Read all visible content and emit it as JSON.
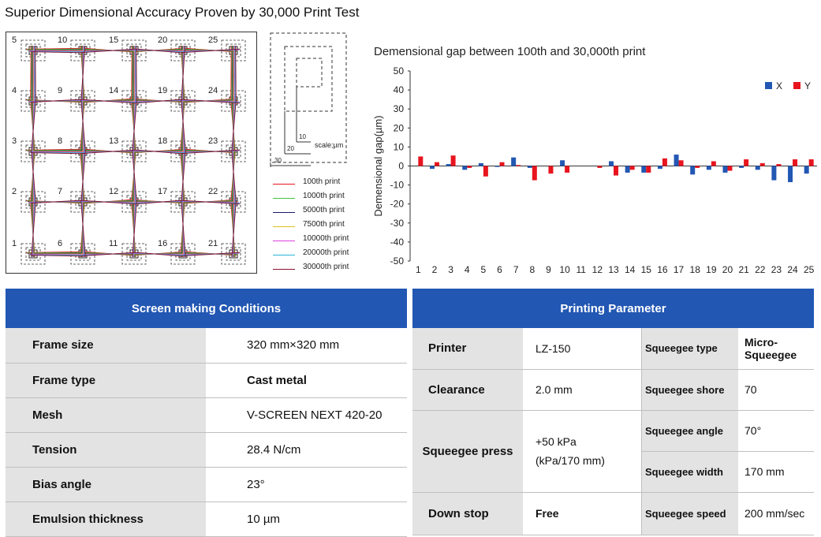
{
  "page_title": "Superior Dimensional Accuracy Proven by 30,000 Print Test",
  "grid_diagram": {
    "point_numbers": [
      "1",
      "2",
      "3",
      "4",
      "5",
      "6",
      "7",
      "8",
      "9",
      "10",
      "11",
      "12",
      "13",
      "14",
      "15",
      "16",
      "17",
      "18",
      "19",
      "20",
      "21",
      "22",
      "23",
      "24",
      "25"
    ],
    "scale_label": "scale;µm",
    "scale_marks": [
      "10",
      "20",
      "30"
    ],
    "legend": [
      {
        "label": "100th print",
        "color": "#e8141e"
      },
      {
        "label": "1000th print",
        "color": "#3ec43e"
      },
      {
        "label": "5000th print",
        "color": "#1a1a6e"
      },
      {
        "label": "7500th print",
        "color": "#d9c21c"
      },
      {
        "label": "10000th print",
        "color": "#e040e0"
      },
      {
        "label": "20000th print",
        "color": "#29b6d8"
      },
      {
        "label": "30000th print",
        "color": "#8a1030"
      }
    ]
  },
  "chart_data": {
    "type": "bar",
    "title": "Demensional gap between 100th and 30,000th print",
    "xlabel": "",
    "ylabel": "Demensional gap(µm)",
    "ylim": [
      -50,
      50
    ],
    "yticks": [
      "50",
      "40",
      "30",
      "20",
      "10",
      "0",
      "-10",
      "-20",
      "-30",
      "-40",
      "-50"
    ],
    "categories": [
      "1",
      "2",
      "3",
      "4",
      "5",
      "6",
      "7",
      "8",
      "9",
      "10",
      "11",
      "12",
      "13",
      "14",
      "15",
      "16",
      "17",
      "18",
      "19",
      "20",
      "21",
      "22",
      "23",
      "24",
      "25"
    ],
    "series": [
      {
        "name": "X",
        "color": "#2257b3",
        "values": [
          0,
          -1.5,
          1,
          -2,
          1.5,
          -0.5,
          4.5,
          -1,
          0,
          3,
          0,
          0,
          2.5,
          -3.5,
          -3.5,
          -1.5,
          6,
          -4.5,
          -2,
          -3.5,
          -1,
          -2,
          -7.5,
          -8.5,
          -4
        ]
      },
      {
        "name": "Y",
        "color": "#e8141e",
        "values": [
          5,
          2,
          5.5,
          -1,
          -5.5,
          2,
          0.5,
          -7.5,
          -4,
          -3.5,
          0,
          -1,
          -5,
          -2,
          -3.5,
          4,
          3,
          -1,
          2.5,
          -2.5,
          3.5,
          1.5,
          1,
          3.5,
          3.5
        ]
      }
    ],
    "legend_position": "top-right"
  },
  "screen_table": {
    "header": "Screen making Conditions",
    "rows": [
      {
        "label": "Frame size",
        "value": "320 mm×320 mm"
      },
      {
        "label": "Frame type",
        "value": "Cast metal"
      },
      {
        "label": "Mesh",
        "value": "V-SCREEN NEXT 420-20"
      },
      {
        "label": "Tension",
        "value": "28.4 N/cm"
      },
      {
        "label": "Bias angle",
        "value": "23°"
      },
      {
        "label": "Emulsion thickness",
        "value": "10 µm"
      }
    ]
  },
  "print_table": {
    "header": "Printing Parameter",
    "printer_label": "Printer",
    "printer_value": "LZ-150",
    "clearance_label": "Clearance",
    "clearance_value": "2.0 mm",
    "press_label": "Squeegee press",
    "press_value_1": "+50  kPa",
    "press_value_2": "(kPa/170 mm)",
    "downstop_label": "Down stop",
    "downstop_value": "Free",
    "type_label": "Squeegee type",
    "type_value": "Micro-Squeegee",
    "shore_label": "Squeegee shore",
    "shore_value": "70",
    "angle_label": "Squeegee angle",
    "angle_value": "70°",
    "width_label": "Squeegee width",
    "width_value": "170 mm",
    "speed_label": "Squeegee speed",
    "speed_value": "200 mm/sec"
  }
}
